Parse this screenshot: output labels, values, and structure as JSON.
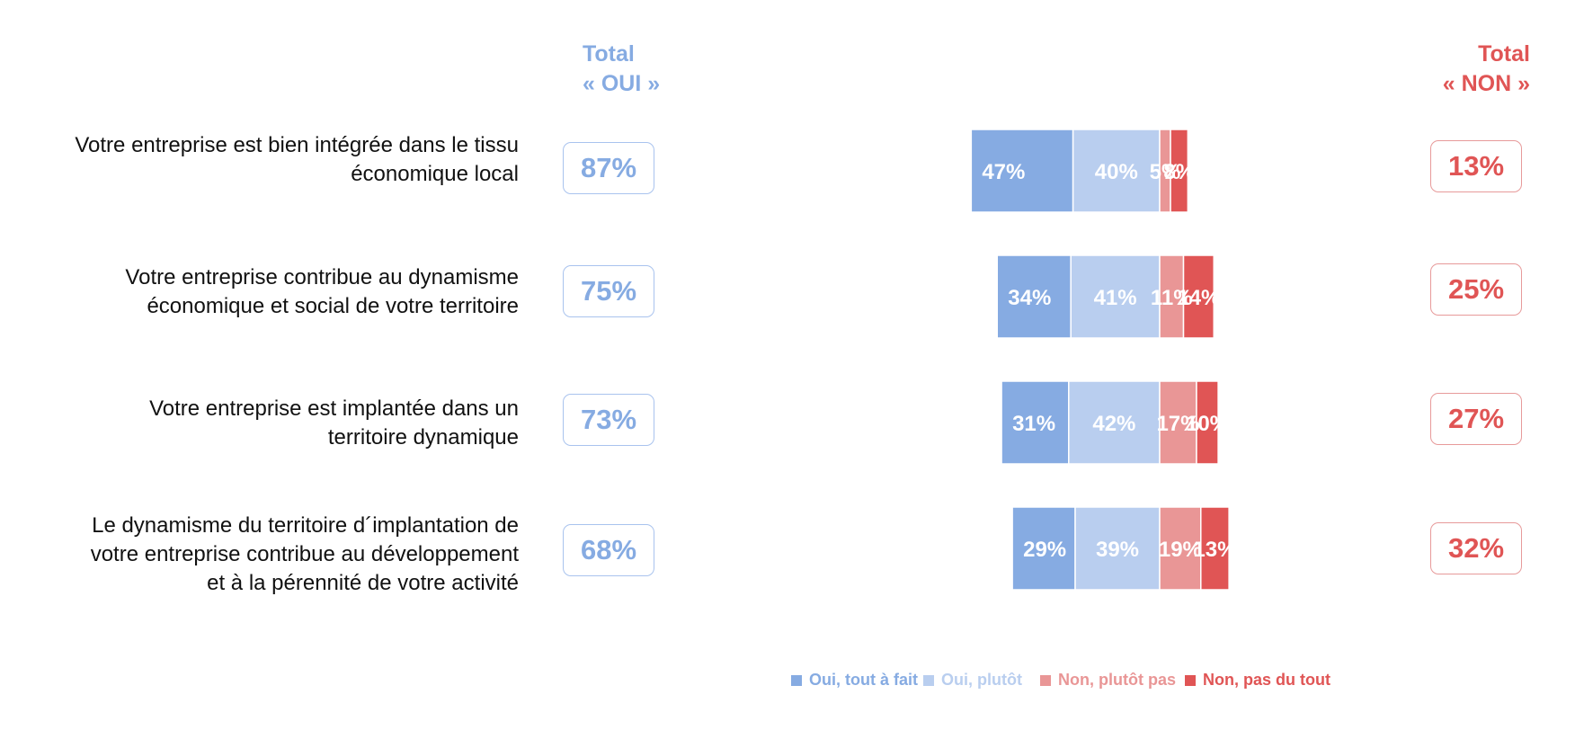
{
  "headers": {
    "total_yes": [
      "Total",
      "« OUI »"
    ],
    "total_no": [
      "Total",
      "« NON »"
    ]
  },
  "colors": {
    "oui_tout_a_fait": "#86ABE2",
    "oui_plutot": "#B9CEEF",
    "non_plutot_pas": "#E99696",
    "non_pas_du_tout": "#E05555",
    "text_dark": "#111111"
  },
  "chart_data": {
    "type": "bar",
    "orientation": "horizontal",
    "stacked": true,
    "title": "",
    "xlabel": "",
    "ylabel": "",
    "legend_position": "bottom",
    "categories": [
      "Votre entreprise est bien intégrée dans le tissu économique local",
      "Votre entreprise contribue au dynamisme économique et social de votre territoire",
      "Votre entreprise est implantée dans un territoire dynamique",
      "Le dynamisme du territoire d´implantation de votre entreprise contribue au développement et à la pérennité de votre activité"
    ],
    "category_lines": [
      [
        "Votre entreprise est bien intégrée dans le tissu",
        "économique local"
      ],
      [
        "Votre entreprise contribue au dynamisme",
        "économique et social de votre territoire"
      ],
      [
        "Votre entreprise est implantée dans un",
        "territoire dynamique"
      ],
      [
        "Le dynamisme du territoire d´implantation de",
        "votre entreprise contribue au développement",
        "et à la pérennité de votre activité"
      ]
    ],
    "series": [
      {
        "name": "Oui, tout à fait",
        "values": [
          47,
          34,
          31,
          29
        ],
        "labels": [
          "47%",
          "34%",
          "31%",
          "29%"
        ]
      },
      {
        "name": "Oui, plutôt",
        "values": [
          40,
          41,
          42,
          39
        ],
        "labels": [
          "40%",
          "41%",
          "42%",
          "39%"
        ]
      },
      {
        "name": "Non, plutôt pas",
        "values": [
          5,
          11,
          17,
          19
        ],
        "labels": [
          "5%",
          "11%",
          "17%",
          "19%"
        ]
      },
      {
        "name": "Non, pas du tout",
        "values": [
          8,
          14,
          10,
          13
        ],
        "labels": [
          "8%",
          "14%",
          "10%",
          "13%"
        ]
      }
    ],
    "total_yes": [
      "87%",
      "75%",
      "73%",
      "68%"
    ],
    "total_no": [
      "13%",
      "25%",
      "27%",
      "32%"
    ]
  }
}
